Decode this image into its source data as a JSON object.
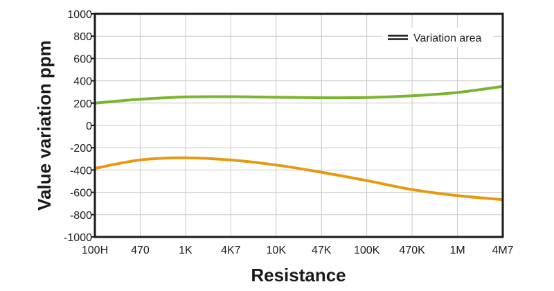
{
  "chart_data": {
    "type": "line",
    "title": "",
    "xlabel": "Resistance",
    "ylabel": "Value variation ppm",
    "categories": [
      "100H",
      "470",
      "1K",
      "4K7",
      "10K",
      "47K",
      "100K",
      "470K",
      "1M",
      "4M7"
    ],
    "yticks": [
      "1000",
      "800",
      "600",
      "400",
      "200",
      "0",
      "-200",
      "-400",
      "-600",
      "-800",
      "-1000"
    ],
    "ylim": [
      -1000,
      1000
    ],
    "grid": true,
    "legend": {
      "label": "Variation area",
      "position": "top-right"
    },
    "series": [
      {
        "color": "#7ab52f",
        "values": [
          200,
          235,
          255,
          258,
          252,
          248,
          250,
          265,
          295,
          350
        ]
      },
      {
        "color": "#e69a10",
        "values": [
          -385,
          -310,
          -290,
          -310,
          -355,
          -420,
          -495,
          -575,
          -630,
          -665
        ]
      }
    ]
  }
}
